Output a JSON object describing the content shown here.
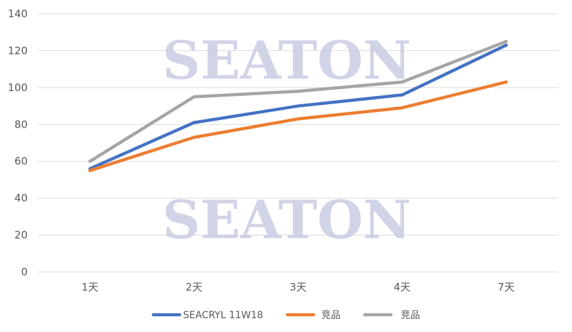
{
  "watermark": {
    "text": "SEATON",
    "color": "#c9cce3"
  },
  "chart_data": {
    "type": "line",
    "title": "",
    "xlabel": "",
    "ylabel": "",
    "categories": [
      "1天",
      "2天",
      "3天",
      "4天",
      "7天"
    ],
    "y_ticks": [
      "0",
      "20",
      "40",
      "60",
      "80",
      "100",
      "120",
      "140"
    ],
    "ylim": [
      0,
      140
    ],
    "grid": true,
    "legend_position": "bottom",
    "series": [
      {
        "name": "SEACRYL 11W18",
        "color": "#4472c4",
        "values": [
          56,
          81,
          90,
          96,
          123
        ]
      },
      {
        "name": "竞品",
        "color": "#ed7d31",
        "values": [
          55,
          73,
          83,
          89,
          103
        ]
      },
      {
        "name": "竞品",
        "color": "#a5a5a5",
        "values": [
          60,
          95,
          98,
          103,
          125
        ]
      }
    ]
  }
}
